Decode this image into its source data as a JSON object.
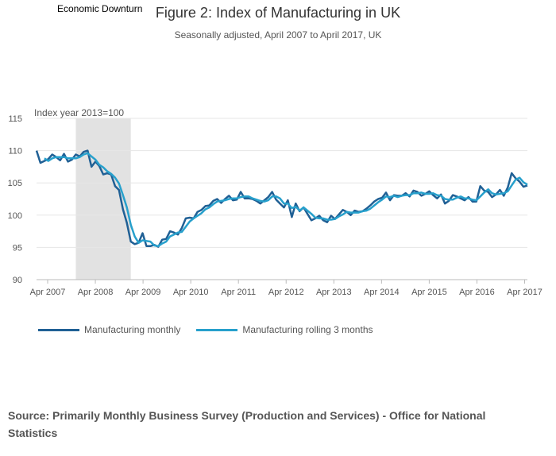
{
  "chart_data": {
    "type": "line",
    "title": "Figure 2: Index of Manufacturing in UK",
    "subtitle": "Seasonally adjusted, April 2007 to April 2017, UK",
    "annotation": "Economic Downturn",
    "ylabel": "Index year 2013=100",
    "ylim": [
      90,
      115
    ],
    "yticks": [
      90,
      95,
      100,
      105,
      110,
      115
    ],
    "xticks": [
      "Apr 2007",
      "Apr 2008",
      "Apr 2009",
      "Apr 2010",
      "Apr 2011",
      "Apr 2012",
      "Apr 2013",
      "Apr 2014",
      "Apr 2015",
      "Apr 2016",
      "Apr 2017"
    ],
    "x_start": "Apr 2007",
    "shaded_region": {
      "label": "Economic Downturn",
      "start_month_index": 10,
      "end_month_index": 24
    },
    "series": [
      {
        "name": "Manufacturing monthly",
        "color": "#206095",
        "values": [
          110.0,
          108.1,
          108.4,
          108.7,
          109.4,
          109.0,
          108.5,
          109.5,
          108.3,
          108.6,
          109.4,
          109.1,
          109.8,
          110.0,
          107.5,
          108.3,
          107.6,
          106.3,
          106.5,
          106.3,
          104.5,
          103.9,
          100.9,
          98.8,
          95.9,
          95.5,
          95.7,
          97.2,
          95.2,
          95.2,
          95.4,
          95.1,
          96.2,
          96.3,
          97.5,
          97.3,
          97.0,
          98.0,
          99.5,
          99.6,
          99.5,
          100.5,
          100.8,
          101.4,
          101.5,
          102.2,
          102.5,
          101.9,
          102.5,
          103.0,
          102.3,
          102.4,
          103.6,
          102.6,
          102.6,
          102.5,
          102.2,
          101.8,
          102.3,
          102.8,
          103.6,
          102.4,
          101.8,
          101.2,
          102.3,
          99.7,
          101.8,
          100.6,
          101.2,
          100.2,
          99.2,
          99.5,
          99.9,
          99.2,
          98.9,
          99.9,
          99.4,
          100.1,
          100.8,
          100.5,
          100.0,
          100.7,
          100.5,
          100.6,
          101.0,
          101.5,
          102.1,
          102.5,
          102.7,
          103.5,
          102.3,
          103.1,
          103.0,
          103.0,
          103.4,
          102.9,
          103.8,
          103.6,
          103.0,
          103.3,
          103.7,
          103.1,
          102.6,
          103.2,
          101.8,
          102.2,
          103.1,
          102.9,
          102.6,
          102.3,
          102.8,
          102.1,
          102.1,
          104.5,
          103.8,
          103.6,
          102.8,
          103.2,
          103.9,
          103.0,
          104.3,
          106.5,
          105.7,
          105.2,
          104.4,
          104.6
        ]
      },
      {
        "name": "Manufacturing rolling 3 months",
        "color": "#27a0cc",
        "values": [
          null,
          null,
          108.8,
          108.4,
          108.8,
          109.0,
          109.0,
          109.0,
          108.8,
          108.8,
          108.8,
          109.0,
          109.4,
          109.6,
          109.1,
          108.6,
          107.8,
          107.4,
          106.8,
          106.4,
          105.8,
          104.9,
          103.1,
          101.2,
          98.5,
          96.7,
          95.7,
          96.1,
          96.0,
          95.9,
          95.3,
          95.2,
          95.6,
          95.9,
          96.7,
          97.0,
          97.3,
          97.4,
          98.2,
          99.0,
          99.5,
          99.9,
          100.3,
          100.9,
          101.2,
          101.7,
          102.1,
          102.2,
          102.3,
          102.5,
          102.6,
          102.6,
          102.8,
          102.9,
          102.9,
          102.6,
          102.4,
          102.2,
          102.1,
          102.3,
          102.9,
          102.9,
          102.6,
          101.8,
          101.8,
          101.1,
          101.3,
          100.7,
          101.2,
          100.7,
          100.2,
          99.6,
          99.5,
          99.5,
          99.3,
          99.3,
          99.4,
          99.8,
          100.1,
          100.5,
          100.4,
          100.4,
          100.4,
          100.6,
          100.7,
          101.0,
          101.5,
          102.0,
          102.4,
          102.9,
          102.8,
          103.0,
          102.8,
          103.0,
          103.1,
          103.1,
          103.4,
          103.4,
          103.5,
          103.3,
          103.3,
          103.4,
          103.1,
          103.0,
          102.5,
          102.4,
          102.4,
          102.7,
          102.9,
          102.6,
          102.6,
          102.4,
          102.3,
          102.9,
          103.5,
          104.0,
          103.4,
          103.2,
          103.3,
          103.4,
          103.7,
          104.6,
          105.5,
          105.8,
          105.1,
          104.7
        ]
      }
    ]
  },
  "source": "Source: Primarily Monthly Business Survey (Production and Services) - Office for National Statistics"
}
